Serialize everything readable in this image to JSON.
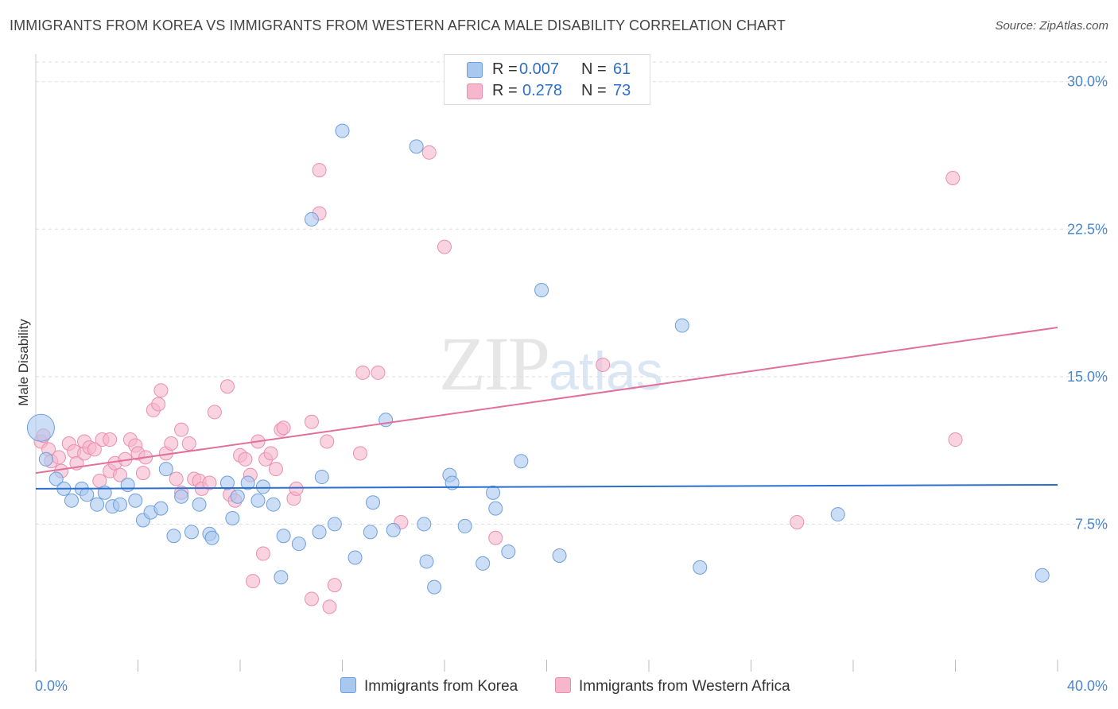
{
  "title": "IMMIGRANTS FROM KOREA VS IMMIGRANTS FROM WESTERN AFRICA MALE DISABILITY CORRELATION CHART",
  "source": "Source: ZipAtlas.com",
  "watermark": {
    "zip": "ZIP",
    "atlas": "atlas"
  },
  "legend": {
    "rows": [
      {
        "r_label": "R =",
        "r_value": "0.007",
        "n_label": "N =",
        "n_value": "61",
        "color": "#a8c8f0"
      },
      {
        "r_label": "R =",
        "r_value": "0.278",
        "n_label": "N =",
        "n_value": "73",
        "color": "#f6b6cb"
      }
    ]
  },
  "bottom_legend": [
    {
      "label": "Immigrants from Korea",
      "color": "#a8c8f0"
    },
    {
      "label": "Immigrants from Western Africa",
      "color": "#f6b6cb"
    }
  ],
  "colors": {
    "korea_fill": "#a8c8f0",
    "korea_stroke": "#6e9fdc",
    "korea_line": "#2a6fcf",
    "wafrica_fill": "#f6b6cb",
    "wafrica_stroke": "#ea8fae",
    "wafrica_line": "#e0709a",
    "grid": "#dddddd",
    "tick_text": "#4a86d0"
  },
  "chart_data": {
    "type": "scatter",
    "ylabel": "Male Disability",
    "xlabel": "",
    "xlim": [
      0,
      40
    ],
    "ylim": [
      0,
      31
    ],
    "x_tick_labels": [
      "0.0%",
      "40.0%"
    ],
    "y_ticks": [
      7.5,
      15.0,
      22.5,
      30.0
    ],
    "y_tick_labels": [
      "7.5%",
      "15.0%",
      "22.5%",
      "30.0%"
    ],
    "grid": true,
    "series": [
      {
        "name": "Immigrants from Korea",
        "trend": [
          [
            0,
            9.3
          ],
          [
            40,
            9.5
          ]
        ],
        "points": [
          [
            0.2,
            12.4
          ],
          [
            0.4,
            10.8
          ],
          [
            0.8,
            9.8
          ],
          [
            1.1,
            9.3
          ],
          [
            1.4,
            8.7
          ],
          [
            1.8,
            9.3
          ],
          [
            2.0,
            9.0
          ],
          [
            2.4,
            8.5
          ],
          [
            2.7,
            9.1
          ],
          [
            3.0,
            8.4
          ],
          [
            3.3,
            8.5
          ],
          [
            3.6,
            9.5
          ],
          [
            3.9,
            8.7
          ],
          [
            4.2,
            7.7
          ],
          [
            4.5,
            8.1
          ],
          [
            4.9,
            8.3
          ],
          [
            5.1,
            10.3
          ],
          [
            5.4,
            6.9
          ],
          [
            5.7,
            8.9
          ],
          [
            6.1,
            7.1
          ],
          [
            6.4,
            8.5
          ],
          [
            6.8,
            7.0
          ],
          [
            6.9,
            6.8
          ],
          [
            7.5,
            9.6
          ],
          [
            7.7,
            7.8
          ],
          [
            7.9,
            8.9
          ],
          [
            8.3,
            9.6
          ],
          [
            8.7,
            8.7
          ],
          [
            8.9,
            9.4
          ],
          [
            9.3,
            8.5
          ],
          [
            9.6,
            4.8
          ],
          [
            9.7,
            6.9
          ],
          [
            10.3,
            6.5
          ],
          [
            10.8,
            23.0
          ],
          [
            11.1,
            7.1
          ],
          [
            11.2,
            9.9
          ],
          [
            11.7,
            7.5
          ],
          [
            12.0,
            27.5
          ],
          [
            12.5,
            5.8
          ],
          [
            13.1,
            7.1
          ],
          [
            13.2,
            8.6
          ],
          [
            13.7,
            12.8
          ],
          [
            14.0,
            7.2
          ],
          [
            14.9,
            26.7
          ],
          [
            15.2,
            7.5
          ],
          [
            15.3,
            5.6
          ],
          [
            15.6,
            4.3
          ],
          [
            16.2,
            10.0
          ],
          [
            16.3,
            9.6
          ],
          [
            16.8,
            7.4
          ],
          [
            17.5,
            5.5
          ],
          [
            17.9,
            9.1
          ],
          [
            18.0,
            8.3
          ],
          [
            18.5,
            6.1
          ],
          [
            19.0,
            10.7
          ],
          [
            19.8,
            19.4
          ],
          [
            20.5,
            5.9
          ],
          [
            25.3,
            17.6
          ],
          [
            26.0,
            5.3
          ],
          [
            31.4,
            8.0
          ],
          [
            39.4,
            4.9
          ]
        ]
      },
      {
        "name": "Immigrants from Western Africa",
        "trend": [
          [
            0,
            10.1
          ],
          [
            40,
            17.5
          ]
        ],
        "points": [
          [
            0.2,
            11.7
          ],
          [
            0.3,
            12.0
          ],
          [
            0.5,
            11.3
          ],
          [
            0.6,
            10.7
          ],
          [
            0.9,
            10.9
          ],
          [
            1.0,
            10.2
          ],
          [
            1.3,
            11.6
          ],
          [
            1.5,
            11.2
          ],
          [
            1.6,
            10.6
          ],
          [
            1.9,
            11.1
          ],
          [
            1.9,
            11.7
          ],
          [
            2.1,
            11.4
          ],
          [
            2.3,
            11.3
          ],
          [
            2.5,
            9.7
          ],
          [
            2.6,
            11.8
          ],
          [
            2.9,
            10.2
          ],
          [
            2.9,
            11.8
          ],
          [
            3.1,
            10.6
          ],
          [
            3.3,
            10.0
          ],
          [
            3.5,
            10.8
          ],
          [
            3.7,
            11.8
          ],
          [
            3.9,
            11.5
          ],
          [
            4.0,
            11.1
          ],
          [
            4.2,
            10.1
          ],
          [
            4.3,
            10.9
          ],
          [
            4.6,
            13.3
          ],
          [
            4.8,
            13.6
          ],
          [
            4.9,
            14.3
          ],
          [
            5.1,
            11.1
          ],
          [
            5.3,
            11.6
          ],
          [
            5.5,
            9.8
          ],
          [
            5.7,
            12.3
          ],
          [
            5.7,
            9.1
          ],
          [
            6.0,
            11.6
          ],
          [
            6.2,
            9.8
          ],
          [
            6.4,
            9.7
          ],
          [
            6.5,
            9.3
          ],
          [
            6.8,
            9.6
          ],
          [
            7.0,
            13.2
          ],
          [
            7.5,
            14.5
          ],
          [
            7.6,
            9.0
          ],
          [
            7.8,
            8.7
          ],
          [
            8.0,
            11.0
          ],
          [
            8.2,
            10.8
          ],
          [
            8.4,
            10.0
          ],
          [
            8.5,
            4.6
          ],
          [
            8.7,
            11.7
          ],
          [
            8.9,
            6.0
          ],
          [
            9.0,
            10.8
          ],
          [
            9.2,
            11.1
          ],
          [
            9.4,
            10.3
          ],
          [
            9.6,
            12.3
          ],
          [
            9.7,
            12.4
          ],
          [
            10.1,
            8.8
          ],
          [
            10.2,
            9.3
          ],
          [
            10.8,
            12.7
          ],
          [
            10.8,
            3.7
          ],
          [
            11.1,
            23.3
          ],
          [
            11.1,
            25.5
          ],
          [
            11.4,
            11.7
          ],
          [
            11.5,
            3.3
          ],
          [
            11.7,
            4.4
          ],
          [
            12.7,
            11.1
          ],
          [
            12.8,
            15.2
          ],
          [
            13.4,
            15.2
          ],
          [
            14.3,
            7.6
          ],
          [
            15.4,
            26.4
          ],
          [
            16.0,
            21.6
          ],
          [
            18.0,
            6.8
          ],
          [
            22.2,
            15.6
          ],
          [
            29.8,
            7.6
          ],
          [
            35.9,
            25.1
          ],
          [
            36.0,
            11.8
          ]
        ]
      }
    ]
  }
}
